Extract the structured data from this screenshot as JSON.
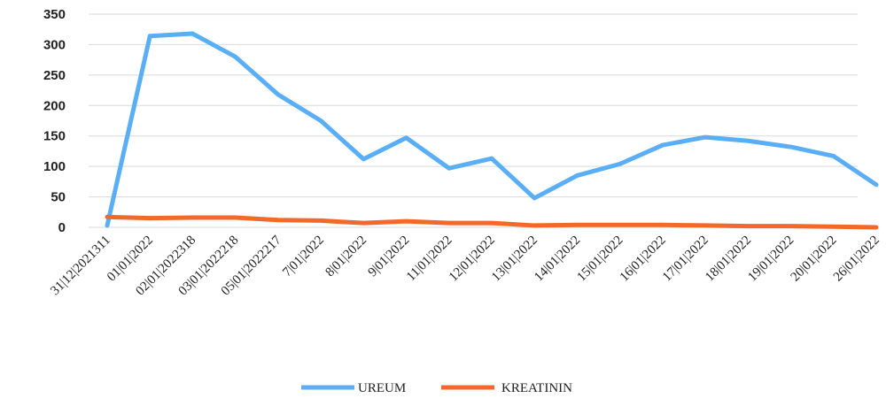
{
  "chart_data": {
    "type": "line",
    "categories": [
      "31|12|2021311",
      "01|01|2022",
      "02|01|2022318",
      "03|01|2022218",
      "05|01|2022217",
      "7|01|2022",
      "8|01|2022",
      "9|01|2022",
      "11|01|2022",
      "12|01|2022",
      "13|01|2022",
      "14|01|2022",
      "15|01|2022",
      "16|01|2022",
      "17|01|2022",
      "18|01|2022",
      "19|01|2022",
      "20|01|2022",
      "26|01|2022"
    ],
    "series": [
      {
        "name": "UREUM",
        "color": "#5aaef5",
        "values": [
          3,
          314,
          318,
          280,
          218,
          175,
          112,
          147,
          97,
          113,
          48,
          85,
          104,
          135,
          148,
          142,
          132,
          117,
          70
        ]
      },
      {
        "name": "KREATININ",
        "color": "#f2692a",
        "values": [
          17,
          15,
          16,
          16,
          12,
          11,
          7,
          10,
          7,
          7,
          3,
          4,
          4,
          4,
          3,
          2,
          2,
          1,
          0
        ]
      }
    ],
    "yticks": [
      "0",
      "50",
      "100",
      "150",
      "200",
      "250",
      "300",
      "350"
    ],
    "ylim": [
      0,
      350
    ],
    "grid": true,
    "legend": "bottom",
    "xlabel": "",
    "ylabel": "",
    "title": ""
  }
}
